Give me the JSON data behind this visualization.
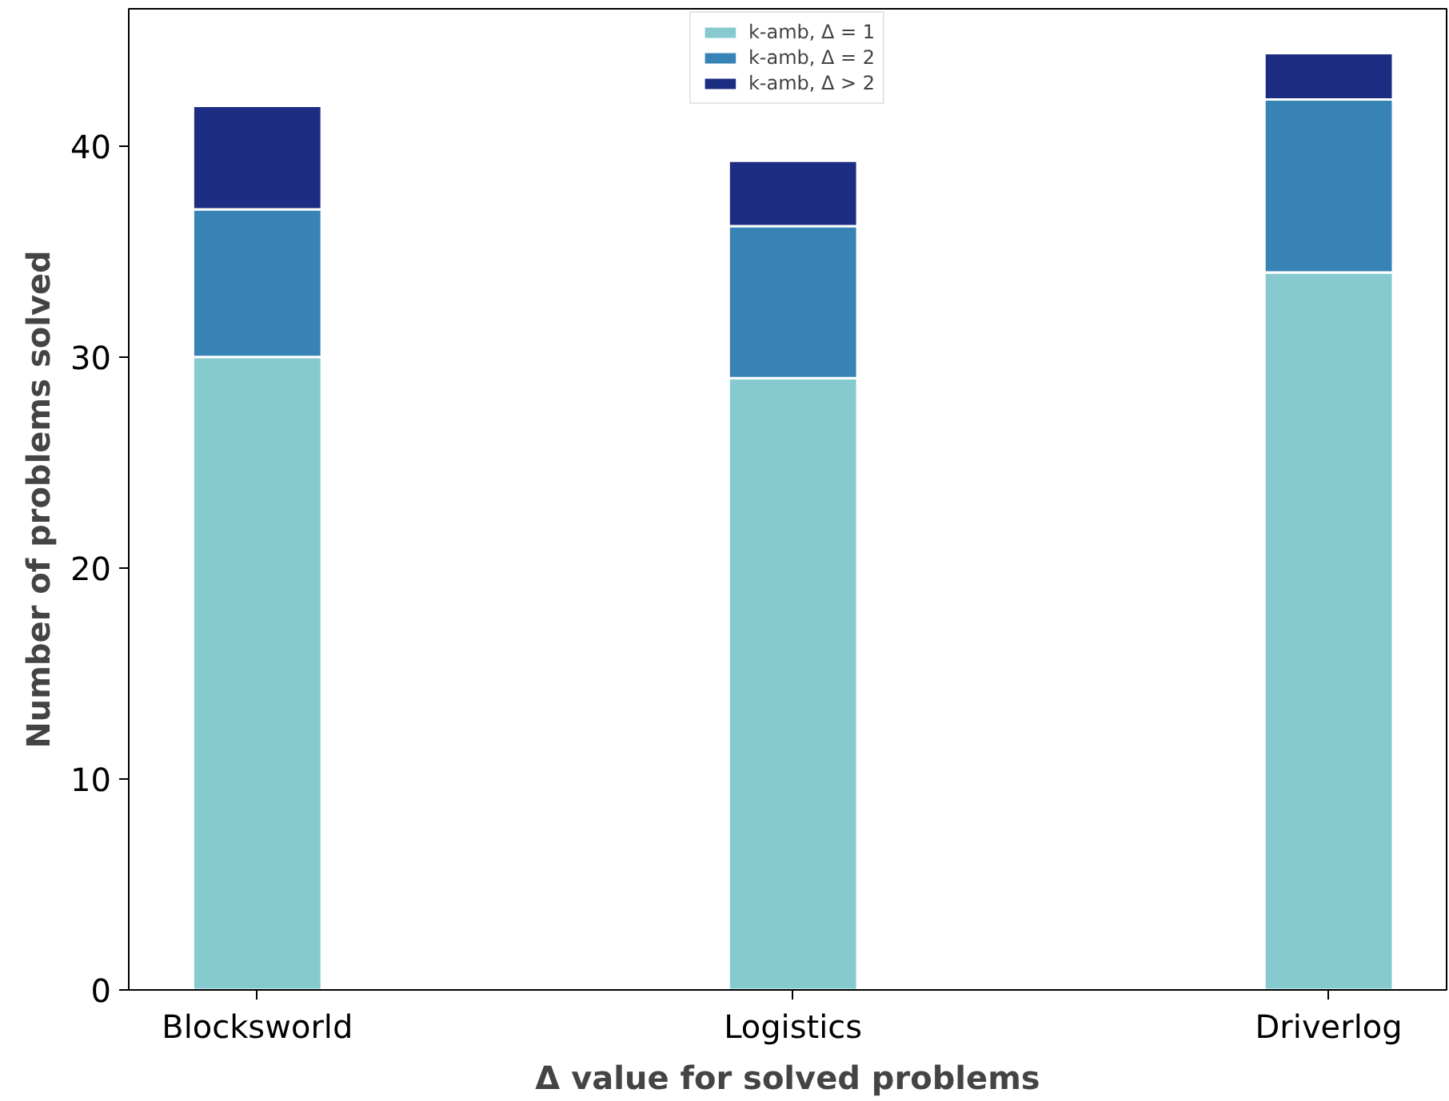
{
  "chart_data": {
    "type": "bar",
    "stacked": true,
    "xlabel": "Δ value for solved problems",
    "ylabel": "Number of problems solved",
    "categories": [
      "Blocksworld",
      "Logistics",
      "Driverlog"
    ],
    "series": [
      {
        "name": "k-amb, Δ = 1",
        "color": "#86cad0",
        "values": [
          30,
          29,
          34
        ]
      },
      {
        "name": "k-amb, Δ = 2",
        "color": "#3783b5",
        "values": [
          7,
          7.2,
          8.2
        ]
      },
      {
        "name": "k-amb, Δ > 2",
        "color": "#1d2d82",
        "values": [
          4.9,
          3.1,
          2.2
        ]
      }
    ],
    "ylim": [
      0,
      46.5
    ],
    "yticks": [
      0,
      10,
      20,
      30,
      40
    ],
    "grid": false,
    "legend": "top"
  }
}
